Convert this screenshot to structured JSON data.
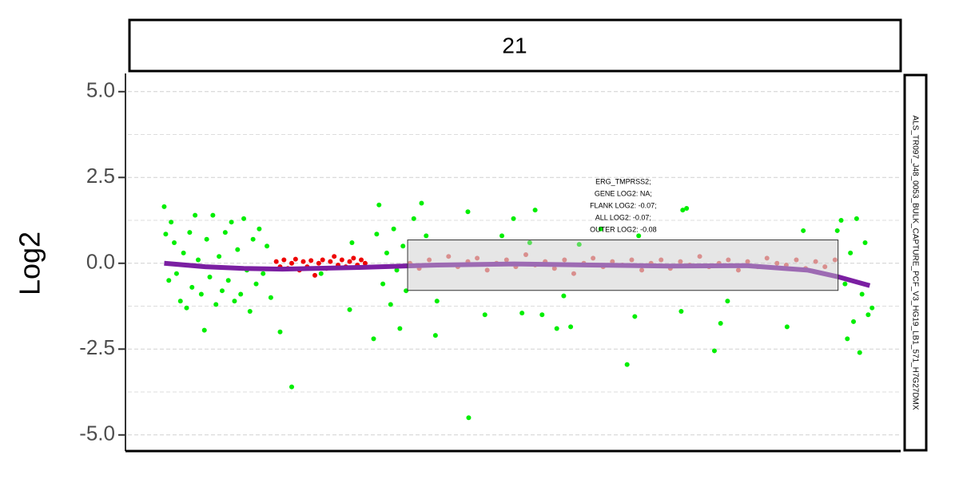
{
  "chart_data": {
    "type": "scatter",
    "strip_title": "21",
    "side_label": "ALS_TR097_J48_0053_BULK_CAPTURE_PCF_V3_HG19_LB1_571_H7G27DMX",
    "y_label": "Log2",
    "xlim": [
      0,
      100
    ],
    "ylim": [
      -5.47,
      5.53
    ],
    "yticks": [
      {
        "value": 5,
        "label": "5.0"
      },
      {
        "value": 2.5,
        "label": "2.5"
      },
      {
        "value": 0,
        "label": "0.0"
      },
      {
        "value": -2.5,
        "label": "-2.5"
      },
      {
        "value": -5,
        "label": "-5.0"
      }
    ],
    "minor_yticks": [
      -3.75,
      -1.25,
      1.25,
      3.75
    ],
    "grid": true,
    "annotation": [
      "ERG_TMPRSS2;",
      "GENE LOG2: NA;",
      "FLANK LOG2: -0.07;",
      "ALL LOG2: -0.07;",
      "OUTER LOG2: -0.08"
    ],
    "annotation_x": 64.1,
    "region": {
      "x": [
        36.2,
        91.9
      ],
      "y": [
        0.68,
        -0.79
      ]
    },
    "series": [
      {
        "color": "#00ee00",
        "x": [
          4.7,
          4.9,
          5.3,
          5.6,
          6,
          6.3,
          6.8,
          7.2,
          7.6,
          8,
          8.3,
          8.7,
          9.1,
          9.5,
          9.9,
          10.2,
          10.6,
          11,
          11.4,
          11.8,
          12.2,
          12.6,
          13,
          13.4,
          13.8,
          14.2,
          14.6,
          15,
          15.4,
          15.8,
          16.2,
          16.6,
          17,
          17.5,
          18,
          18.5,
          19.7,
          21.2,
          25,
          28.7,
          29,
          31.8,
          32.2,
          32.5,
          33,
          33.5,
          34,
          34.4,
          34.8,
          35.2,
          35.6,
          36,
          37,
          38,
          38.6,
          39.8,
          40,
          44,
          44.1,
          46.2,
          48.4,
          49.9,
          51,
          52,
          52.7,
          53.6,
          55.5,
          56.4,
          57.3,
          58.4,
          61.2,
          64.6,
          65.6,
          66.1,
          71.8,
          72.3,
          71.6,
          75.9,
          76.7,
          77.6,
          85.3,
          87.4,
          91.8,
          92.3,
          92.8,
          93.1,
          93.5,
          93.9,
          94.3,
          94.7,
          95,
          95.4,
          95.8,
          96.3
        ],
        "values": [
          1.65,
          0.85,
          -0.5,
          1.2,
          0.6,
          -0.3,
          -1.1,
          0.3,
          -1.3,
          0.9,
          -0.7,
          1.4,
          0.1,
          -0.9,
          -1.95,
          0.7,
          -0.4,
          1.4,
          -1.2,
          0.2,
          -0.8,
          0.9,
          -0.5,
          1.2,
          -1.1,
          0.4,
          -0.9,
          1.3,
          -0.2,
          -1.4,
          0.7,
          -0.6,
          1.0,
          -0.3,
          0.5,
          -1.0,
          -2.0,
          -3.6,
          -0.3,
          -1.35,
          0.6,
          -2.2,
          0.85,
          1.7,
          -0.6,
          0.3,
          -1.2,
          1.0,
          -0.2,
          -1.9,
          0.5,
          -0.8,
          1.3,
          1.75,
          0.8,
          -2.1,
          -1.1,
          1.5,
          -4.5,
          -1.5,
          0.8,
          1.3,
          -1.45,
          0.6,
          1.55,
          -1.5,
          -1.9,
          -0.95,
          -1.85,
          0.55,
          1.0,
          -2.95,
          -1.55,
          0.8,
          1.55,
          1.6,
          -1.4,
          -2.55,
          -1.75,
          -1.1,
          -1.85,
          0.95,
          0.95,
          1.25,
          -0.6,
          -2.2,
          0.3,
          -1.7,
          1.3,
          -2.6,
          -0.9,
          0.6,
          -1.5,
          -1.3
        ]
      },
      {
        "color": "#ee0000",
        "x": [
          19.2,
          19.7,
          20.2,
          20.7,
          21.2,
          21.7,
          22.2,
          22.7,
          23.2,
          23.7,
          24.2,
          24.7,
          25.2,
          25.7,
          26.2,
          26.7,
          27.2,
          27.7,
          28.2,
          28.7,
          29.2,
          29.7,
          30.2,
          30.7
        ],
        "values": [
          0.05,
          -0.1,
          0.1,
          -0.15,
          0.0,
          0.12,
          -0.2,
          0.05,
          -0.1,
          0.08,
          -0.35,
          0.0,
          0.1,
          -0.15,
          0.05,
          0.2,
          -0.05,
          0.1,
          -0.1,
          0.05,
          0.15,
          -0.05,
          0.1,
          0.0
        ]
      },
      {
        "color": "#e8615f",
        "x": [
          36.5,
          37.7,
          39,
          40.2,
          41.5,
          42.7,
          44,
          45.2,
          46.5,
          47.7,
          49,
          50.2,
          51.5,
          52.7,
          54,
          55.2,
          56.5,
          57.7,
          59,
          60.2,
          61.5,
          62.7,
          64,
          65.2,
          66.5,
          67.7,
          69,
          70.2,
          71.5,
          72.7,
          74,
          75.2,
          76.5,
          77.7,
          79,
          80.2,
          81.5,
          82.7,
          84,
          85.2,
          86.5,
          87.7,
          89,
          90.2,
          91.5
        ],
        "values": [
          0.0,
          -0.15,
          0.1,
          -0.05,
          0.2,
          -0.1,
          0.05,
          0.15,
          -0.2,
          0.0,
          0.1,
          -0.1,
          0.25,
          -0.05,
          0.05,
          -0.15,
          0.1,
          -0.3,
          0.0,
          0.15,
          -0.1,
          0.05,
          -0.05,
          0.1,
          -0.2,
          0.0,
          0.1,
          -0.15,
          0.05,
          -0.05,
          0.2,
          -0.1,
          0.0,
          0.1,
          -0.2,
          0.05,
          -0.1,
          0.15,
          0.0,
          -0.05,
          0.1,
          -0.15,
          0.05,
          -0.1,
          0.1
        ]
      }
    ],
    "trend": {
      "color": "#7b1fa2",
      "x": [
        4.7,
        10,
        15,
        20,
        30,
        40,
        50,
        60,
        70,
        80,
        88,
        92,
        96
      ],
      "values": [
        0.0,
        -0.1,
        -0.15,
        -0.17,
        -0.12,
        -0.05,
        -0.02,
        -0.05,
        -0.08,
        -0.07,
        -0.2,
        -0.4,
        -0.65
      ]
    }
  }
}
